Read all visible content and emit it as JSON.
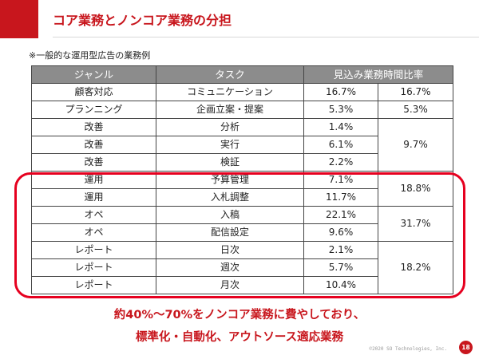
{
  "title": "コア業務とノンコア業務の分担",
  "note": "※一般的な運用型広告の業務例",
  "table": {
    "headers": [
      "ジャンル",
      "タスク",
      "見込み業務時間比率"
    ],
    "rows": [
      {
        "genre": "顧客対応",
        "task": "コミュニケーション",
        "ratio": "16.7%",
        "group_ratio": "16.7%"
      },
      {
        "genre": "プランニング",
        "task": "企画立案・提案",
        "ratio": "5.3%",
        "group_ratio": "5.3%"
      },
      {
        "genre": "改善",
        "task": "分析",
        "ratio": "1.4%"
      },
      {
        "genre": "改善",
        "task": "実行",
        "ratio": "6.1%",
        "group_ratio": "9.7%"
      },
      {
        "genre": "改善",
        "task": "検証",
        "ratio": "2.2%"
      },
      {
        "genre": "運用",
        "task": "予算管理",
        "ratio": "7.1%",
        "group_ratio": "18.8%"
      },
      {
        "genre": "運用",
        "task": "入札調整",
        "ratio": "11.7%"
      },
      {
        "genre": "オペ",
        "task": "入稿",
        "ratio": "22.1%",
        "group_ratio": "31.7%"
      },
      {
        "genre": "オペ",
        "task": "配信設定",
        "ratio": "9.6%"
      },
      {
        "genre": "レポート",
        "task": "日次",
        "ratio": "2.1%",
        "group_ratio": "18.2%"
      },
      {
        "genre": "レポート",
        "task": "週次",
        "ratio": "5.7%"
      },
      {
        "genre": "レポート",
        "task": "月次",
        "ratio": "10.4%"
      }
    ]
  },
  "message": {
    "line1": "約40%～70%をノンコア業務に費やしており、",
    "line2": "標準化・自動化、アウトソース適応業務"
  },
  "footer": {
    "copyright": "©2020 SO Technologies, Inc.",
    "page_number": "18"
  },
  "colors": {
    "accent": "#c8161d",
    "highlight_border": "#e6001f",
    "table_header_bg": "#8c8c8c"
  }
}
